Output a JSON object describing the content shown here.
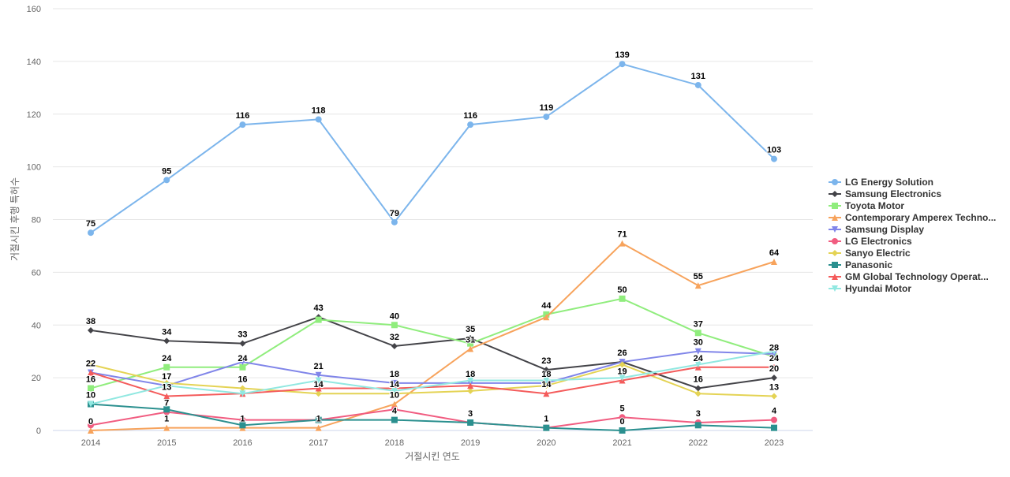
{
  "chart_data": {
    "type": "line",
    "title": "",
    "xlabel": "거절시킨 연도",
    "ylabel": "거절시킨 후행 특허수",
    "ylim": [
      0,
      160
    ],
    "yticks": [
      0,
      20,
      40,
      60,
      80,
      100,
      120,
      140,
      160
    ],
    "grid": true,
    "legend_position": "right",
    "categories": [
      "2014",
      "2015",
      "2016",
      "2017",
      "2018",
      "2019",
      "2020",
      "2021",
      "2022",
      "2023"
    ],
    "series": [
      {
        "name": "LG Energy Solution",
        "color": "#7cb5ec",
        "marker": "circle",
        "values": [
          75,
          95,
          116,
          118,
          79,
          116,
          119,
          139,
          131,
          103
        ]
      },
      {
        "name": "Samsung Electronics",
        "color": "#434348",
        "marker": "diamond",
        "values": [
          38,
          34,
          33,
          43,
          32,
          35,
          23,
          26,
          16,
          20
        ]
      },
      {
        "name": "Toyota Motor",
        "color": "#90ed7d",
        "marker": "square",
        "values": [
          16,
          24,
          24,
          42,
          40,
          33,
          44,
          50,
          37,
          28
        ]
      },
      {
        "name": "Contemporary Amperex Techno...",
        "color": "#f7a35c",
        "marker": "triangle",
        "values": [
          0,
          1,
          1,
          1,
          10,
          31,
          43,
          71,
          55,
          64
        ]
      },
      {
        "name": "Samsung Display",
        "color": "#8085e9",
        "marker": "triangle-down",
        "values": [
          22,
          17,
          26,
          21,
          18,
          18,
          18,
          26,
          30,
          29
        ]
      },
      {
        "name": "LG Electronics",
        "color": "#f15c80",
        "marker": "circle",
        "values": [
          2,
          7,
          4,
          4,
          8,
          3,
          1,
          5,
          3,
          4
        ]
      },
      {
        "name": "Sanyo Electric",
        "color": "#e4d354",
        "marker": "diamond",
        "values": [
          25,
          18,
          16,
          14,
          14,
          15,
          17,
          25,
          14,
          13
        ]
      },
      {
        "name": "Panasonic",
        "color": "#2b908f",
        "marker": "square",
        "values": [
          10,
          8,
          2,
          4,
          4,
          3,
          1,
          0,
          2,
          1
        ]
      },
      {
        "name": "GM Global Technology Operat...",
        "color": "#f45b5b",
        "marker": "triangle",
        "values": [
          22,
          13,
          14,
          16,
          16,
          17,
          14,
          19,
          24,
          24
        ]
      },
      {
        "name": "Hyundai Motor",
        "color": "#91e8e1",
        "marker": "triangle-down",
        "values": [
          10,
          17,
          14,
          19,
          15,
          19,
          19,
          20,
          25,
          30
        ]
      }
    ]
  }
}
